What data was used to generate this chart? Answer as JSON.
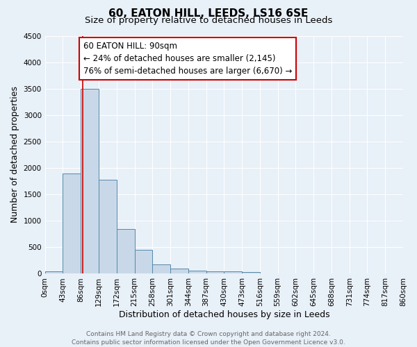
{
  "title": "60, EATON HILL, LEEDS, LS16 6SE",
  "subtitle": "Size of property relative to detached houses in Leeds",
  "xlabel": "Distribution of detached houses by size in Leeds",
  "ylabel": "Number of detached properties",
  "bin_edges": [
    0,
    43,
    86,
    129,
    172,
    215,
    258,
    301,
    344,
    387,
    430,
    473,
    516,
    559,
    602,
    645,
    688,
    731,
    774,
    817,
    860
  ],
  "bar_heights": [
    50,
    1900,
    3500,
    1775,
    850,
    450,
    175,
    100,
    65,
    50,
    40,
    30,
    0,
    0,
    0,
    0,
    0,
    0,
    0,
    0
  ],
  "bar_color": "#c8d8e8",
  "bar_edge_color": "#5588aa",
  "property_size_sqm": 90,
  "vline_color": "#cc0000",
  "annotation_text": "60 EATON HILL: 90sqm\n← 24% of detached houses are smaller (2,145)\n76% of semi-detached houses are larger (6,670) →",
  "annotation_box_color": "#ffffff",
  "annotation_box_edge_color": "#cc0000",
  "ylim": [
    0,
    4500
  ],
  "yticks": [
    0,
    500,
    1000,
    1500,
    2000,
    2500,
    3000,
    3500,
    4000,
    4500
  ],
  "footer_line1": "Contains HM Land Registry data © Crown copyright and database right 2024.",
  "footer_line2": "Contains public sector information licensed under the Open Government Licence v3.0.",
  "background_color": "#e8f0f8",
  "grid_color": "#ffffff",
  "title_fontsize": 11,
  "subtitle_fontsize": 9.5,
  "axis_label_fontsize": 9,
  "tick_label_fontsize": 7.5,
  "annotation_fontsize": 8.5,
  "footer_fontsize": 6.5
}
